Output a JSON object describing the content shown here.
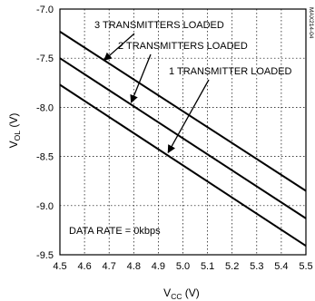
{
  "chart_data": {
    "type": "line",
    "xlabel_main": "V",
    "xlabel_sub": "CC",
    "xlabel_unit": " (V)",
    "ylabel_main": "V",
    "ylabel_sub": "OL",
    "ylabel_unit": " (V)",
    "xlim": [
      4.5,
      5.5
    ],
    "ylim": [
      -9.5,
      -7.0
    ],
    "xticks": [
      4.5,
      4.6,
      4.7,
      4.8,
      4.9,
      5.0,
      5.1,
      5.2,
      5.3,
      5.4,
      5.5
    ],
    "xtick_labels": [
      "4.5",
      "4.6",
      "4.7",
      "4.8",
      "4.9",
      "5.0",
      "5.1",
      "5.2",
      "5.3",
      "5.4",
      "5.5"
    ],
    "yticks": [
      -7.0,
      -7.5,
      -8.0,
      -8.5,
      -9.0,
      -9.5
    ],
    "ytick_labels": [
      "-7.0",
      "-7.5",
      "-8.0",
      "-8.5",
      "-9.0",
      "-9.5"
    ],
    "grid": true,
    "series": [
      {
        "name": "3 TRANSMITTERS LOADED",
        "x": [
          4.5,
          5.5
        ],
        "y": [
          -7.23,
          -8.85
        ]
      },
      {
        "name": "2 TRANSMITTERS LOADED",
        "x": [
          4.5,
          5.5
        ],
        "y": [
          -7.5,
          -9.13
        ]
      },
      {
        "name": "1 TRANSMITTER LOADED",
        "x": [
          4.5,
          5.5
        ],
        "y": [
          -7.77,
          -9.41
        ]
      }
    ],
    "annotations": [
      {
        "text": "3 TRANSMITTERS LOADED",
        "arrow_to": [
          4.68,
          -7.52
        ]
      },
      {
        "text": "2 TRANSMITTERS LOADED",
        "arrow_to": [
          4.79,
          -7.95
        ]
      },
      {
        "text": "1 TRANSMITTER LOADED",
        "arrow_to": [
          4.94,
          -8.46
        ]
      }
    ],
    "note": "DATA RATE = 0kbps",
    "watermark": "MAX214-04"
  }
}
